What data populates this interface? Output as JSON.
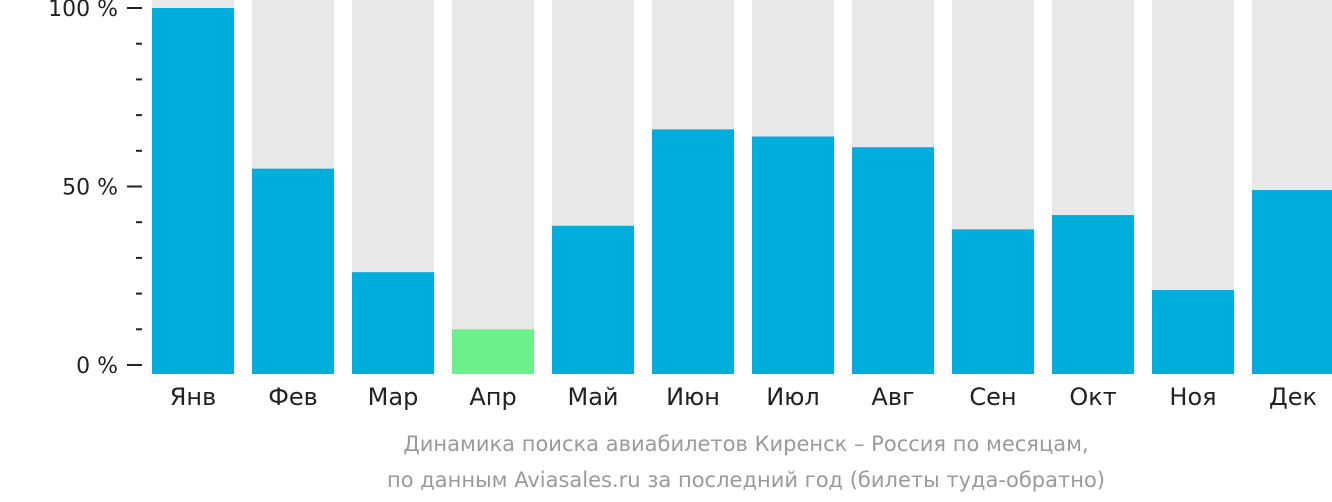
{
  "chart_data": {
    "type": "bar",
    "categories": [
      "Янв",
      "Фев",
      "Мар",
      "Апр",
      "Май",
      "Июн",
      "Июл",
      "Авг",
      "Сен",
      "Окт",
      "Ноя",
      "Дек"
    ],
    "values": [
      100,
      55,
      26,
      10,
      39,
      66,
      64,
      61,
      38,
      42,
      21,
      49
    ],
    "ylim": [
      0,
      100
    ],
    "y_ticks": [
      "0 %",
      "50 %",
      "100 %"
    ],
    "highlight_index": 3,
    "grid": false,
    "colors": {
      "bar": "#00AEDC",
      "highlight": "#6CF08A",
      "track": "#E8E8E8",
      "axis": "#222222",
      "caption": "#9A9A9A"
    }
  },
  "caption": {
    "line1": "Динамика поиска авиабилетов Киренск – Россия по месяцам,",
    "line2": "по данным Aviasales.ru за последний год (билеты туда-обратно)"
  }
}
